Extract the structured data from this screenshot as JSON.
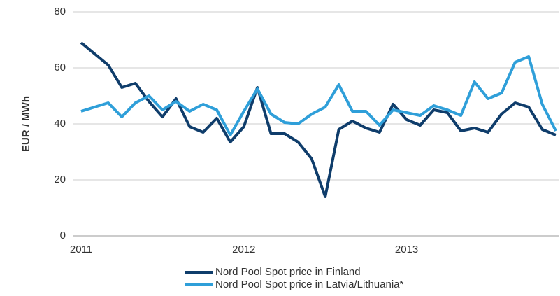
{
  "chart_data": {
    "type": "line",
    "ylabel": "EUR / MWh",
    "categories": [
      "2011",
      null,
      null,
      null,
      null,
      null,
      null,
      null,
      null,
      null,
      null,
      null,
      "2012",
      null,
      null,
      null,
      null,
      null,
      null,
      null,
      null,
      null,
      null,
      null,
      "2013",
      null,
      null,
      null,
      null,
      null,
      null,
      null,
      null,
      null,
      null,
      null
    ],
    "series": [
      {
        "name": "Nord Pool Spot price in Finland",
        "color": "#0f3d6b",
        "values": [
          69,
          65,
          61,
          53,
          54.5,
          48,
          42.5,
          49,
          39,
          37,
          42,
          33.5,
          39,
          53,
          36.5,
          36.5,
          33.5,
          27.5,
          14,
          38,
          41,
          38.5,
          37,
          47,
          41.5,
          39.5,
          45,
          44,
          37.5,
          38.5,
          37,
          43.5,
          47.5,
          46,
          38,
          36
        ]
      },
      {
        "name": "Nord Pool Spot price in Latvia/Lithuania*",
        "color": "#2f9fd9",
        "values": [
          44.5,
          46,
          47.5,
          42.5,
          47.5,
          50,
          45,
          48,
          44.5,
          47,
          45,
          36,
          44.5,
          52.5,
          43.5,
          40.5,
          40,
          43.5,
          46,
          54,
          44.5,
          44.5,
          39.5,
          45,
          44,
          43,
          46.5,
          45,
          43,
          55,
          49,
          51,
          62,
          64,
          47,
          37.5
        ]
      }
    ],
    "ylim": [
      0,
      80
    ],
    "yticks": [
      0,
      20,
      40,
      60,
      80
    ],
    "grid": true,
    "legend": "bottom"
  }
}
